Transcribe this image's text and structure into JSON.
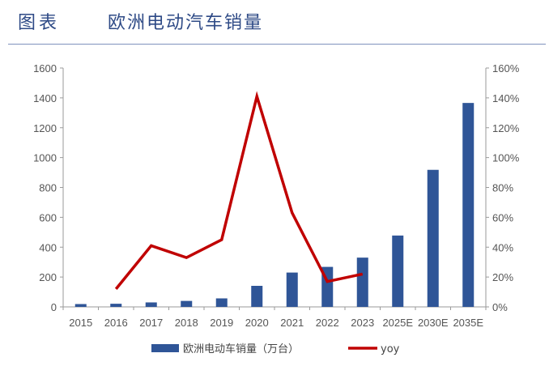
{
  "header": {
    "label": "图表",
    "title": "欧洲电动汽车销量"
  },
  "colors": {
    "title": "#2e4a86",
    "bar": "#2f5597",
    "line": "#c00000",
    "rule": "#7f93bd"
  },
  "chart_data": {
    "type": "bar",
    "title": "欧洲电动汽车销量",
    "categories": [
      "2015",
      "2016",
      "2017",
      "2018",
      "2019",
      "2020",
      "2021",
      "2022",
      "2023",
      "2025E",
      "2030E",
      "2035E"
    ],
    "series": [
      {
        "name": "欧洲电动车销量（万台）",
        "type": "bar",
        "axis": "left",
        "values": [
          19,
          21,
          30,
          40,
          57,
          141,
          230,
          268,
          330,
          478,
          918,
          1366
        ]
      },
      {
        "name": "yoy",
        "type": "line",
        "axis": "right",
        "values": [
          null,
          0.12,
          0.41,
          0.33,
          0.45,
          1.41,
          0.63,
          0.17,
          0.22,
          null,
          null,
          null
        ]
      }
    ],
    "left_axis": {
      "ylim": [
        0,
        1600
      ],
      "ticks": [
        "0",
        "200",
        "400",
        "600",
        "800",
        "1000",
        "1200",
        "1400",
        "1600"
      ]
    },
    "right_axis": {
      "ylim": [
        0,
        1.6
      ],
      "ticks": [
        "0%",
        "20%",
        "40%",
        "60%",
        "80%",
        "100%",
        "120%",
        "140%",
        "160%"
      ]
    },
    "grid": false,
    "legend": "bottom"
  }
}
